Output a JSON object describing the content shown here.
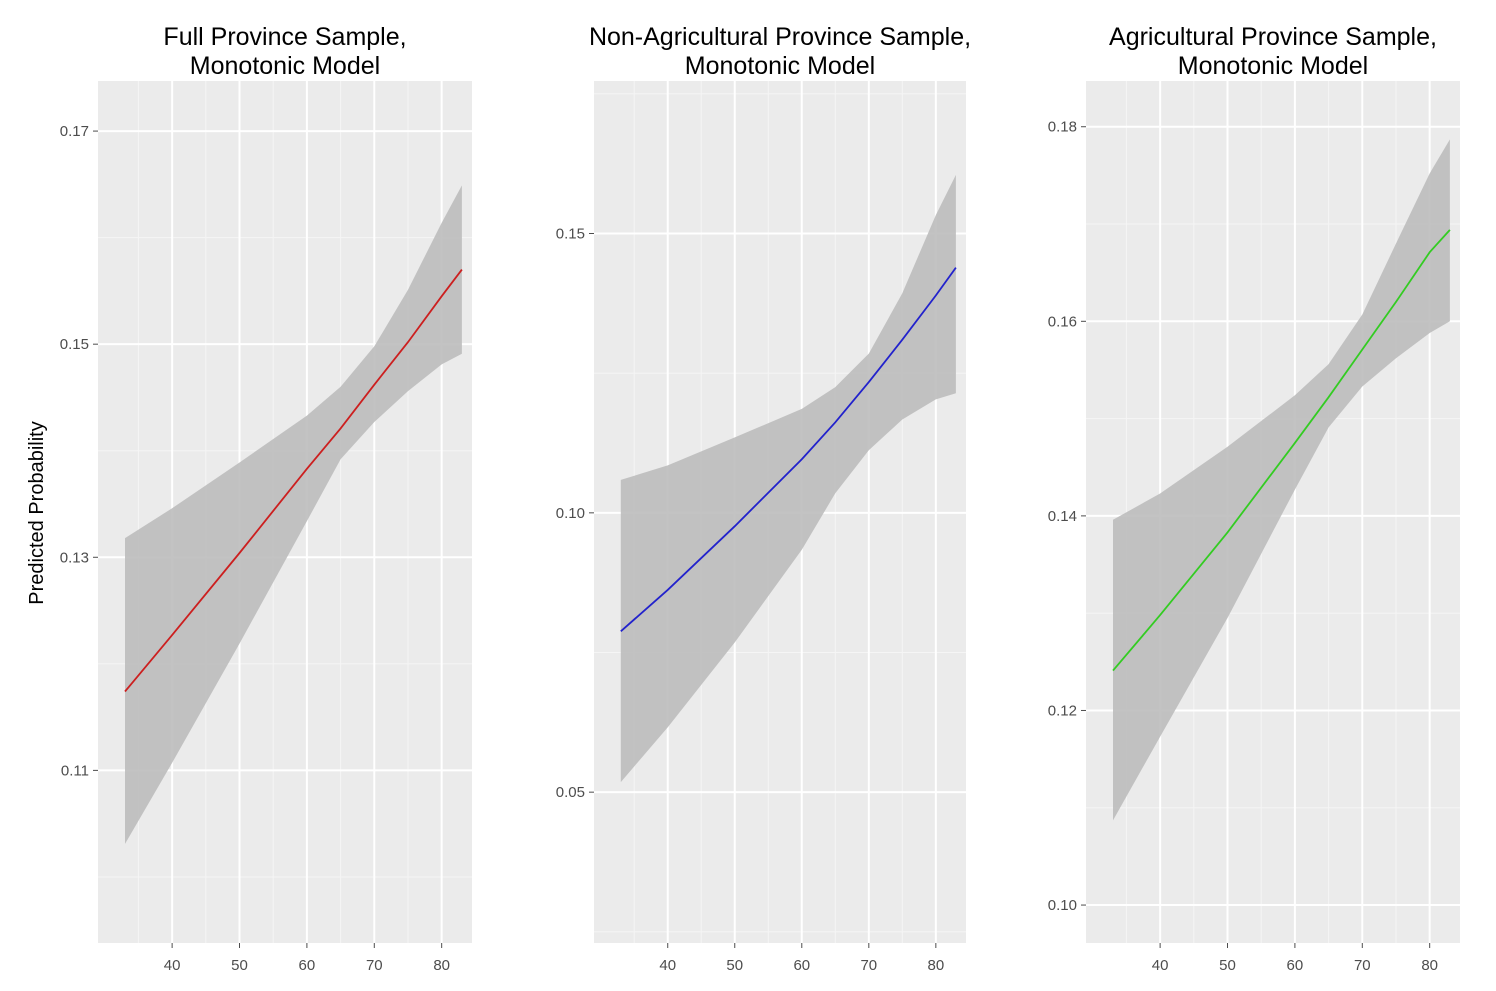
{
  "figure": {
    "ylabel": "Predicted Probability",
    "background_color": "#ebebeb",
    "grid_color": "#ffffff",
    "band_color": "#bdbdbd"
  },
  "chart_data": [
    {
      "type": "line",
      "title_lines": [
        "Full Province Sample,",
        "Monotonic Model"
      ],
      "xlabel": "",
      "ylabel": "Predicted Probability",
      "xlim": [
        29,
        84.5
      ],
      "ylim": [
        0.0938,
        0.1747
      ],
      "x_ticks": [
        40,
        50,
        60,
        70,
        80
      ],
      "x_tick_labels": [
        "40",
        "50",
        "60",
        "70",
        "80"
      ],
      "y_ticks": [
        0.11,
        0.13,
        0.15,
        0.17
      ],
      "y_tick_labels": [
        "0.11",
        "0.13",
        "0.15",
        "0.17"
      ],
      "line_color": "#cc1f1f",
      "series": [
        {
          "name": "fit",
          "x": [
            33,
            40,
            50,
            60,
            65,
            70,
            75,
            80,
            83
          ],
          "y": [
            0.1174,
            0.1227,
            0.1304,
            0.1383,
            0.1421,
            0.1462,
            0.1502,
            0.1545,
            0.157
          ]
        },
        {
          "name": "lower",
          "x": [
            33,
            40,
            50,
            60,
            65,
            70,
            75,
            80,
            83
          ],
          "y": [
            0.1031,
            0.1107,
            0.1219,
            0.1334,
            0.1392,
            0.1427,
            0.1456,
            0.1481,
            0.1491
          ]
        },
        {
          "name": "upper",
          "x": [
            33,
            40,
            50,
            60,
            65,
            70,
            75,
            80,
            83
          ],
          "y": [
            0.1318,
            0.1346,
            0.1389,
            0.1433,
            0.146,
            0.1498,
            0.1551,
            0.1614,
            0.1649
          ]
        }
      ]
    },
    {
      "type": "line",
      "title_lines": [
        "Non-Agricultural Province Sample,",
        "Monotonic Model"
      ],
      "xlabel": "",
      "ylabel": "",
      "xlim": [
        29,
        84.5
      ],
      "ylim": [
        0.023,
        0.1773
      ],
      "x_ticks": [
        40,
        50,
        60,
        70,
        80
      ],
      "x_tick_labels": [
        "40",
        "50",
        "60",
        "70",
        "80"
      ],
      "y_ticks": [
        0.05,
        0.1,
        0.15
      ],
      "y_tick_labels": [
        "0.05",
        "0.10",
        "0.15"
      ],
      "line_color": "#2222cc",
      "series": [
        {
          "name": "fit",
          "x": [
            33,
            40,
            50,
            60,
            65,
            70,
            75,
            80,
            83
          ],
          "y": [
            0.0788,
            0.0862,
            0.0976,
            0.1096,
            0.1162,
            0.1234,
            0.131,
            0.1389,
            0.1439
          ]
        },
        {
          "name": "lower",
          "x": [
            33,
            40,
            50,
            60,
            65,
            70,
            75,
            80,
            83
          ],
          "y": [
            0.0518,
            0.0616,
            0.0768,
            0.0934,
            0.1035,
            0.1112,
            0.1167,
            0.1203,
            0.1214
          ]
        },
        {
          "name": "upper",
          "x": [
            33,
            40,
            50,
            60,
            65,
            70,
            75,
            80,
            83
          ],
          "y": [
            0.1059,
            0.1085,
            0.1135,
            0.1186,
            0.1225,
            0.1285,
            0.1393,
            0.1533,
            0.1605
          ]
        }
      ]
    },
    {
      "type": "line",
      "title_lines": [
        "Agricultural Province Sample,",
        "Monotonic Model"
      ],
      "xlabel": "",
      "ylabel": "",
      "xlim": [
        29,
        84.5
      ],
      "ylim": [
        0.0961,
        0.1847
      ],
      "x_ticks": [
        40,
        50,
        60,
        70,
        80
      ],
      "x_tick_labels": [
        "40",
        "50",
        "60",
        "70",
        "80"
      ],
      "y_ticks": [
        0.1,
        0.12,
        0.14,
        0.16,
        0.18
      ],
      "y_tick_labels": [
        "0.10",
        "0.12",
        "0.14",
        "0.16",
        "0.18"
      ],
      "line_color": "#33cc22",
      "series": [
        {
          "name": "fit",
          "x": [
            33,
            40,
            50,
            60,
            65,
            70,
            75,
            80,
            83
          ],
          "y": [
            0.1241,
            0.1298,
            0.1383,
            0.1475,
            0.1522,
            0.1571,
            0.162,
            0.1671,
            0.1694
          ]
        },
        {
          "name": "lower",
          "x": [
            33,
            40,
            50,
            60,
            65,
            70,
            75,
            80,
            83
          ],
          "y": [
            0.1087,
            0.1173,
            0.1295,
            0.1427,
            0.1491,
            0.1533,
            0.1562,
            0.1588,
            0.16
          ]
        },
        {
          "name": "upper",
          "x": [
            33,
            40,
            50,
            60,
            65,
            70,
            75,
            80,
            83
          ],
          "y": [
            0.1396,
            0.1423,
            0.1471,
            0.1524,
            0.1556,
            0.1607,
            0.168,
            0.1752,
            0.1787
          ]
        }
      ]
    }
  ]
}
